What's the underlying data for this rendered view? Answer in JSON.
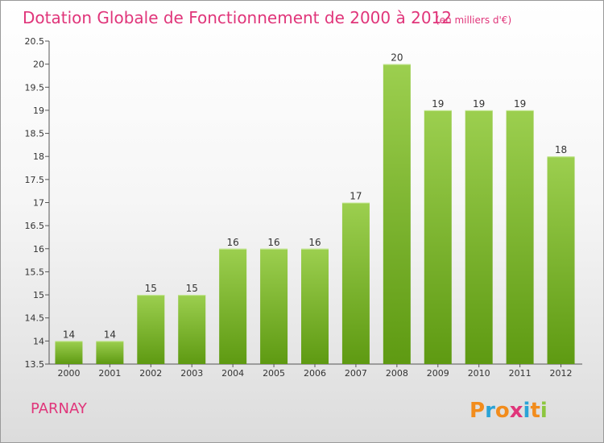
{
  "chart_data": {
    "type": "bar",
    "title": "Dotation Globale de Fonctionnement de 2000 à 2012",
    "unit_note": "(en milliers d'€)",
    "categories": [
      "2000",
      "2001",
      "2002",
      "2003",
      "2004",
      "2005",
      "2006",
      "2007",
      "2008",
      "2009",
      "2010",
      "2011",
      "2012"
    ],
    "values": [
      14,
      14,
      15,
      15,
      16,
      16,
      16,
      17,
      20,
      19,
      19,
      19,
      18
    ],
    "value_labels": [
      "14",
      "14",
      "15",
      "15",
      "16",
      "16",
      "16",
      "17",
      "20",
      "19",
      "19",
      "19",
      "18"
    ],
    "ylim": [
      13.5,
      20.5
    ],
    "yticks": [
      13.5,
      14,
      14.5,
      15,
      15.5,
      16,
      16.5,
      17,
      17.5,
      18,
      18.5,
      19,
      19.5,
      20,
      20.5
    ],
    "ytick_labels": [
      "13.5",
      "14",
      "14.5",
      "15",
      "15.5",
      "16",
      "16.5",
      "17",
      "17.5",
      "18",
      "18.5",
      "19",
      "19.5",
      "20",
      "20.5"
    ],
    "xlabel": "",
    "ylabel": "",
    "grid": false,
    "colors": {
      "bar_top": "#9ccf4f",
      "bar_bottom": "#5e9a12",
      "title": "#e0357a"
    }
  },
  "place_name": "PARNAY",
  "logo": {
    "text": "Proxiti",
    "letter_colors": [
      "#f28c1c",
      "#2aa3d6",
      "#f28c1c",
      "#e0357a",
      "#2aa3d6",
      "#f28c1c",
      "#8cc63f"
    ]
  }
}
